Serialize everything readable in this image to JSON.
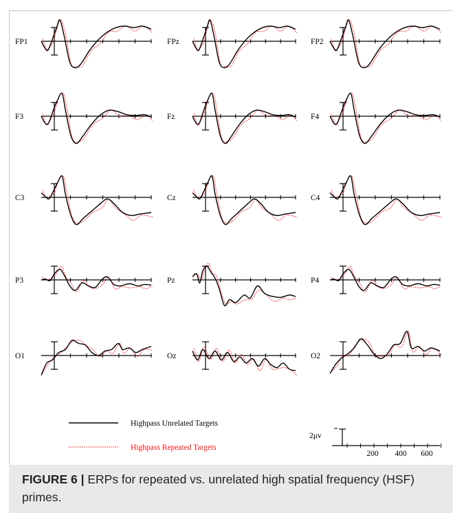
{
  "chart_data": {
    "type": "line",
    "series": [
      {
        "name": "Highpass Unrelated Targets",
        "color": "#000000",
        "dash": "solid"
      },
      {
        "name": "Highpass Repeated Targets",
        "color": "#e8141a",
        "dash": "dotted"
      }
    ],
    "scale": {
      "voltage_label": "2μv",
      "x_ticks": [
        "200",
        "400",
        "600"
      ]
    },
    "channels": [
      {
        "name": "FP1",
        "type": "frontal"
      },
      {
        "name": "FPz",
        "type": "frontal"
      },
      {
        "name": "FP2",
        "type": "frontal"
      },
      {
        "name": "F3",
        "type": "f"
      },
      {
        "name": "Fz",
        "type": "f"
      },
      {
        "name": "F4",
        "type": "f"
      },
      {
        "name": "C3",
        "type": "c"
      },
      {
        "name": "Cz",
        "type": "c"
      },
      {
        "name": "C4",
        "type": "c"
      },
      {
        "name": "P3",
        "type": "p"
      },
      {
        "name": "Pz",
        "type": "pz"
      },
      {
        "name": "P4",
        "type": "p"
      },
      {
        "name": "O1",
        "type": "o"
      },
      {
        "name": "Oz",
        "type": "oz"
      },
      {
        "name": "O2",
        "type": "o2"
      }
    ]
  },
  "caption": {
    "label": "FIGURE 6 |",
    "text": " ERPs for repeated vs. unrelated high spatial frequency (HSF) primes."
  }
}
